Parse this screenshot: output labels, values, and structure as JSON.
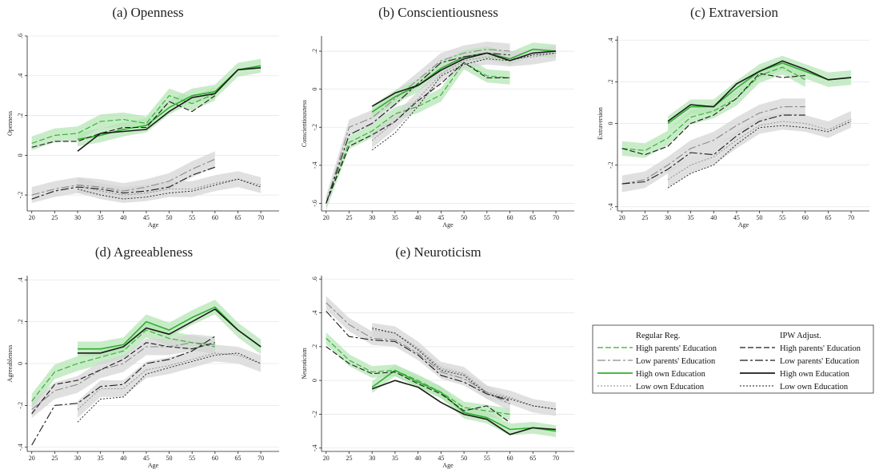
{
  "legend": {
    "col1_title": "Regular Reg.",
    "col2_title": "IPW Adjust.",
    "items": [
      "High parents' Education",
      "Low parents' Education",
      "High own Education",
      "Low own Education"
    ]
  },
  "colors": {
    "green": "#2fae2f",
    "dark": "#1a1a1a",
    "gray": "#8a8a8a",
    "green_band": "#b5e6b5",
    "gray_band": "#d6d6d6"
  },
  "chart_data": [
    {
      "type": "line",
      "title": "(a) Openness",
      "xlabel": "Age",
      "ylabel": "Openness",
      "ylim": [
        -0.28,
        0.6
      ],
      "yticks": [
        -0.2,
        0,
        0.2,
        0.4,
        0.6
      ],
      "ytick_labels": [
        "-.2",
        "0",
        ".2",
        ".4",
        ".6"
      ],
      "x": [
        20,
        25,
        30,
        35,
        40,
        45,
        50,
        55,
        60,
        65,
        70
      ],
      "series": [
        {
          "name": "High parents' Education",
          "method": "Regular Reg.",
          "values": [
            0.06,
            0.1,
            0.11,
            0.17,
            0.18,
            0.16,
            0.3,
            0.26,
            0.31,
            null,
            null
          ]
        },
        {
          "name": "Low parents' Education",
          "method": "Regular Reg.",
          "values": [
            -0.2,
            -0.17,
            -0.15,
            -0.16,
            -0.18,
            -0.16,
            -0.13,
            -0.07,
            -0.02,
            null,
            null
          ]
        },
        {
          "name": "High own Education",
          "method": "Regular Reg.",
          "values": [
            null,
            null,
            0.08,
            0.1,
            0.13,
            0.15,
            0.24,
            0.3,
            0.32,
            0.43,
            0.45
          ]
        },
        {
          "name": "Low own Education",
          "method": "Regular Reg.",
          "values": [
            null,
            null,
            -0.15,
            -0.18,
            -0.2,
            -0.19,
            -0.17,
            -0.17,
            -0.14,
            -0.12,
            -0.15
          ]
        },
        {
          "name": "High parents' Education",
          "method": "IPW Adjust.",
          "values": [
            0.04,
            0.07,
            0.07,
            0.11,
            0.14,
            0.14,
            0.27,
            0.22,
            0.3,
            null,
            null
          ]
        },
        {
          "name": "Low parents' Education",
          "method": "IPW Adjust.",
          "values": [
            -0.22,
            -0.18,
            -0.16,
            -0.17,
            -0.19,
            -0.18,
            -0.16,
            -0.1,
            -0.06,
            null,
            null
          ]
        },
        {
          "name": "High own Education",
          "method": "IPW Adjust.",
          "values": [
            null,
            null,
            0.02,
            0.11,
            0.12,
            0.13,
            0.22,
            0.29,
            0.31,
            0.43,
            0.44
          ]
        },
        {
          "name": "Low own Education",
          "method": "IPW Adjust.",
          "values": [
            null,
            null,
            -0.17,
            -0.2,
            -0.22,
            -0.21,
            -0.19,
            -0.18,
            -0.15,
            -0.12,
            -0.16
          ]
        }
      ]
    },
    {
      "type": "line",
      "title": "(b) Conscientiousness",
      "xlabel": "Age",
      "ylabel": "Conscientiousness",
      "ylim": [
        -0.64,
        0.28
      ],
      "yticks": [
        -0.6,
        -0.4,
        -0.2,
        0,
        0.2
      ],
      "ytick_labels": [
        "-.6",
        "-.4",
        "-.2",
        "0",
        ".2"
      ],
      "x": [
        20,
        25,
        30,
        35,
        40,
        45,
        50,
        55,
        60,
        65,
        70
      ],
      "series": [
        {
          "name": "High parents' Education",
          "method": "Regular Reg.",
          "values": [
            -0.6,
            -0.28,
            -0.22,
            -0.13,
            -0.09,
            -0.03,
            0.14,
            0.07,
            0.06,
            null,
            null
          ]
        },
        {
          "name": "Low parents' Education",
          "method": "Regular Reg.",
          "values": [
            -0.6,
            -0.2,
            -0.15,
            -0.05,
            0.05,
            0.15,
            0.19,
            0.21,
            0.2,
            null,
            null
          ]
        },
        {
          "name": "High own Education",
          "method": "Regular Reg.",
          "values": [
            null,
            null,
            -0.12,
            -0.04,
            0.02,
            0.11,
            0.17,
            0.19,
            0.16,
            0.21,
            0.2
          ]
        },
        {
          "name": "Low own Education",
          "method": "Regular Reg.",
          "values": [
            null,
            null,
            -0.27,
            -0.17,
            -0.05,
            0.08,
            0.15,
            0.17,
            0.16,
            0.17,
            0.19
          ]
        },
        {
          "name": "High parents' Education",
          "method": "IPW Adjust.",
          "values": [
            -0.6,
            -0.3,
            -0.24,
            -0.17,
            -0.06,
            0.03,
            0.14,
            0.06,
            0.06,
            null,
            null
          ]
        },
        {
          "name": "Low parents' Education",
          "method": "IPW Adjust.",
          "values": [
            -0.6,
            -0.24,
            -0.18,
            -0.08,
            0.03,
            0.14,
            0.17,
            0.19,
            0.18,
            null,
            null
          ]
        },
        {
          "name": "High own Education",
          "method": "IPW Adjust.",
          "values": [
            null,
            null,
            -0.09,
            -0.02,
            0.02,
            0.1,
            0.16,
            0.19,
            0.15,
            0.19,
            0.2
          ]
        },
        {
          "name": "Low own Education",
          "method": "IPW Adjust.",
          "values": [
            null,
            null,
            -0.32,
            -0.23,
            -0.09,
            0.07,
            0.13,
            0.16,
            0.15,
            0.18,
            0.19
          ]
        }
      ]
    },
    {
      "type": "line",
      "title": "(c) Extraversion",
      "xlabel": "Age",
      "ylabel": "Extraversion",
      "ylim": [
        -0.42,
        0.42
      ],
      "yticks": [
        -0.4,
        -0.2,
        0,
        0.2,
        0.4
      ],
      "ytick_labels": [
        "-.4",
        "-.2",
        "0",
        ".2",
        ".4"
      ],
      "x": [
        20,
        25,
        30,
        35,
        40,
        45,
        50,
        55,
        60,
        65,
        70
      ],
      "series": [
        {
          "name": "High parents' Education",
          "method": "Regular Reg.",
          "values": [
            -0.12,
            -0.13,
            -0.07,
            0.03,
            0.06,
            0.12,
            0.23,
            0.27,
            0.21,
            null,
            null
          ]
        },
        {
          "name": "Low parents' Education",
          "method": "Regular Reg.",
          "values": [
            -0.29,
            -0.27,
            -0.2,
            -0.12,
            -0.08,
            -0.01,
            0.05,
            0.08,
            0.08,
            null,
            null
          ]
        },
        {
          "name": "High own Education",
          "method": "Regular Reg.",
          "values": [
            null,
            null,
            0.0,
            0.08,
            0.08,
            0.17,
            0.25,
            0.29,
            0.25,
            0.21,
            0.22
          ]
        },
        {
          "name": "Low own Education",
          "method": "Regular Reg.",
          "values": [
            null,
            null,
            -0.27,
            -0.2,
            -0.16,
            -0.08,
            -0.01,
            0.01,
            0.0,
            -0.03,
            0.02
          ]
        },
        {
          "name": "High parents' Education",
          "method": "IPW Adjust.",
          "values": [
            -0.12,
            -0.15,
            -0.11,
            0.0,
            0.04,
            0.12,
            0.24,
            0.22,
            0.23,
            null,
            null
          ]
        },
        {
          "name": "Low parents' Education",
          "method": "IPW Adjust.",
          "values": [
            -0.29,
            -0.28,
            -0.22,
            -0.14,
            -0.15,
            -0.06,
            0.01,
            0.04,
            0.04,
            null,
            null
          ]
        },
        {
          "name": "High own Education",
          "method": "IPW Adjust.",
          "values": [
            null,
            null,
            0.01,
            0.09,
            0.08,
            0.19,
            0.25,
            0.3,
            0.26,
            0.21,
            0.22
          ]
        },
        {
          "name": "Low own Education",
          "method": "IPW Adjust.",
          "values": [
            null,
            null,
            -0.31,
            -0.24,
            -0.2,
            -0.1,
            -0.02,
            -0.01,
            -0.02,
            -0.04,
            0.01
          ]
        }
      ]
    },
    {
      "type": "line",
      "title": "(d) Agreeableness",
      "xlabel": "Age",
      "ylabel": "Agreeableness",
      "ylim": [
        -0.42,
        0.42
      ],
      "yticks": [
        -0.4,
        -0.2,
        0,
        0.2,
        0.4
      ],
      "ytick_labels": [
        "-.4",
        "-.2",
        "0",
        ".2",
        ".4"
      ],
      "x": [
        20,
        25,
        30,
        35,
        40,
        45,
        50,
        55,
        60,
        65,
        70
      ],
      "series": [
        {
          "name": "High parents' Education",
          "method": "Regular Reg.",
          "values": [
            -0.18,
            -0.04,
            0.0,
            0.03,
            0.06,
            0.16,
            0.12,
            0.1,
            0.08,
            null,
            null
          ]
        },
        {
          "name": "Low parents' Education",
          "method": "Regular Reg.",
          "values": [
            -0.22,
            -0.13,
            -0.1,
            -0.03,
            0.0,
            0.08,
            0.08,
            0.1,
            0.09,
            null,
            null
          ]
        },
        {
          "name": "High own Education",
          "method": "Regular Reg.",
          "values": [
            null,
            null,
            0.07,
            0.07,
            0.09,
            0.2,
            0.16,
            0.22,
            0.27,
            0.16,
            0.08
          ]
        },
        {
          "name": "Low own Education",
          "method": "Regular Reg.",
          "values": [
            null,
            null,
            -0.22,
            -0.12,
            -0.12,
            -0.03,
            -0.01,
            0.02,
            0.05,
            0.04,
            0.0
          ]
        },
        {
          "name": "High parents' Education",
          "method": "IPW Adjust.",
          "values": [
            -0.24,
            -0.1,
            -0.08,
            -0.03,
            0.02,
            0.1,
            0.08,
            0.07,
            0.1,
            null,
            null
          ]
        },
        {
          "name": "Low parents' Education",
          "method": "IPW Adjust.",
          "values": [
            -0.39,
            -0.2,
            -0.19,
            -0.11,
            -0.1,
            0.0,
            0.02,
            0.06,
            0.13,
            null,
            null
          ]
        },
        {
          "name": "High own Education",
          "method": "IPW Adjust.",
          "values": [
            null,
            null,
            0.05,
            0.05,
            0.08,
            0.17,
            0.14,
            0.2,
            0.26,
            0.16,
            0.08
          ]
        },
        {
          "name": "Low own Education",
          "method": "IPW Adjust.",
          "values": [
            null,
            null,
            -0.28,
            -0.17,
            -0.16,
            -0.05,
            -0.02,
            0.01,
            0.04,
            0.05,
            0.0
          ]
        }
      ]
    },
    {
      "type": "line",
      "title": "(e) Neuroticism",
      "xlabel": "Age",
      "ylabel": "Neuroticism",
      "ylim": [
        -0.42,
        0.62
      ],
      "yticks": [
        -0.4,
        -0.2,
        0,
        0.2,
        0.4,
        0.6
      ],
      "ytick_labels": [
        "-.4",
        "-.2",
        "0",
        ".2",
        ".4",
        ".6"
      ],
      "x": [
        20,
        25,
        30,
        35,
        40,
        45,
        50,
        55,
        60,
        65,
        70
      ],
      "series": [
        {
          "name": "High parents' Education",
          "method": "Regular Reg.",
          "values": [
            0.25,
            0.12,
            0.05,
            0.06,
            0.0,
            -0.07,
            -0.16,
            -0.18,
            -0.2,
            null,
            null
          ]
        },
        {
          "name": "Low parents' Education",
          "method": "Regular Reg.",
          "values": [
            0.46,
            0.33,
            0.25,
            0.24,
            0.16,
            0.05,
            0.01,
            -0.07,
            -0.14,
            null,
            null
          ]
        },
        {
          "name": "High own Education",
          "method": "Regular Reg.",
          "values": [
            null,
            null,
            -0.04,
            0.06,
            -0.01,
            -0.07,
            -0.19,
            -0.22,
            -0.29,
            -0.28,
            -0.3
          ]
        },
        {
          "name": "Low own Education",
          "method": "Regular Reg.",
          "values": [
            null,
            null,
            0.3,
            0.28,
            0.19,
            0.07,
            0.04,
            -0.07,
            -0.1,
            -0.15,
            -0.17
          ]
        },
        {
          "name": "High parents' Education",
          "method": "IPW Adjust.",
          "values": [
            0.2,
            0.1,
            0.04,
            0.05,
            -0.02,
            -0.08,
            -0.18,
            -0.15,
            -0.25,
            null,
            null
          ]
        },
        {
          "name": "Low parents' Education",
          "method": "IPW Adjust.",
          "values": [
            0.41,
            0.26,
            0.24,
            0.23,
            0.15,
            0.03,
            -0.01,
            -0.08,
            -0.12,
            null,
            null
          ]
        },
        {
          "name": "High own Education",
          "method": "IPW Adjust.",
          "values": [
            null,
            null,
            -0.05,
            0.0,
            -0.04,
            -0.13,
            -0.2,
            -0.23,
            -0.32,
            -0.28,
            -0.29
          ]
        },
        {
          "name": "Low own Education",
          "method": "IPW Adjust.",
          "values": [
            null,
            null,
            0.31,
            0.28,
            0.18,
            0.06,
            0.03,
            -0.08,
            -0.11,
            -0.15,
            -0.17
          ]
        }
      ]
    }
  ]
}
